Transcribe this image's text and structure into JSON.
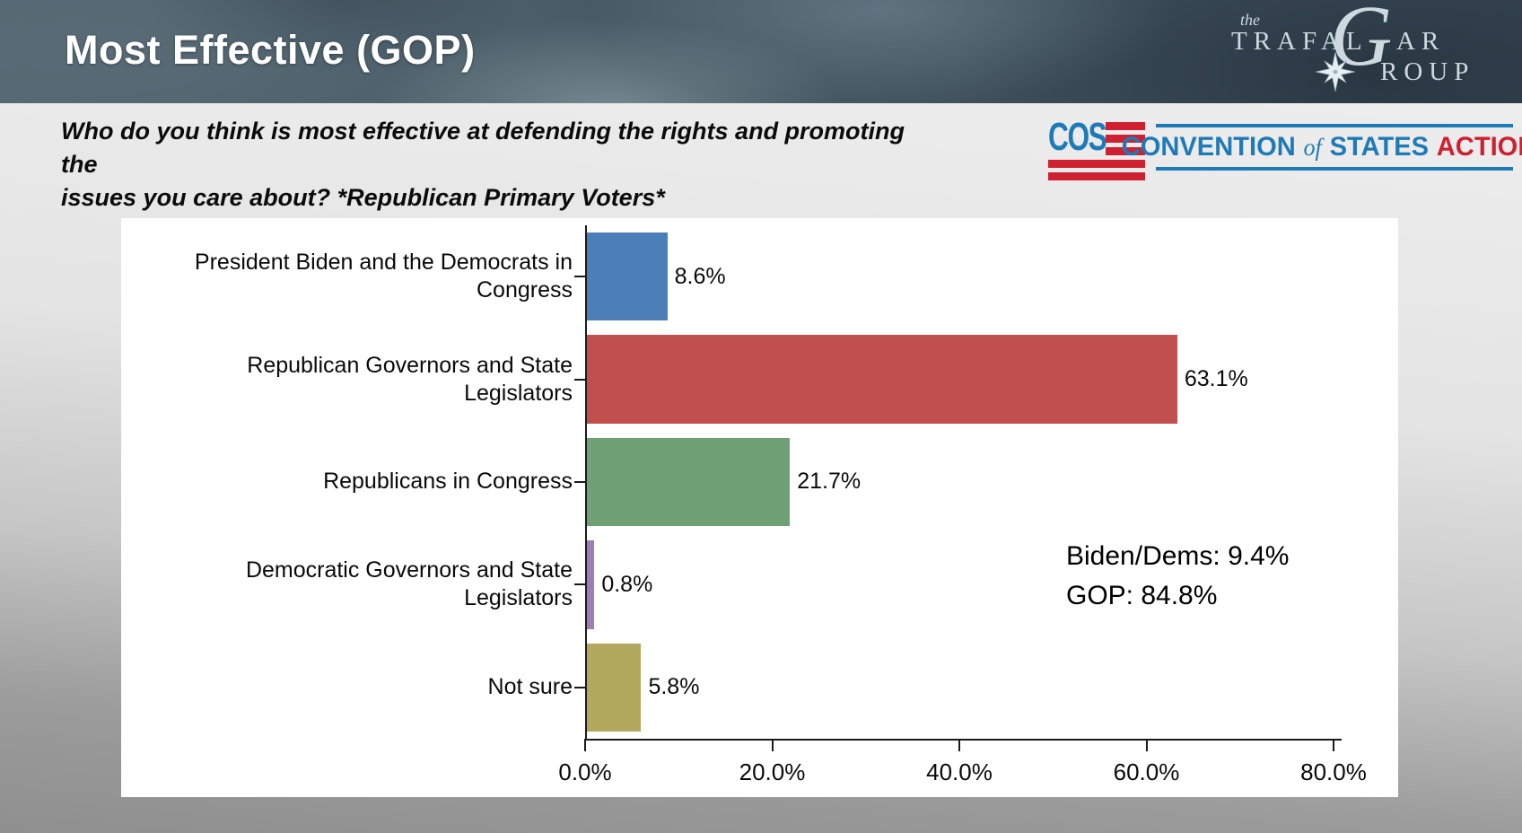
{
  "header": {
    "title": "Most Effective (GOP)",
    "trafalgar_logo": {
      "the": "the",
      "trafal": "TRAFAL",
      "g": "G",
      "ar": "AR",
      "roup": "ROUP",
      "color": "#cdd9de"
    }
  },
  "question": {
    "line1": "Who do you think is most effective at defending the rights and promoting the",
    "line2": "issues you care about? *Republican Primary Voters*"
  },
  "cos_logo": {
    "flag_text": "COS",
    "convention": "CONVENTION",
    "of": "of",
    "states": "STATES",
    "action": "ACTION",
    "blue": "#1f7ab8",
    "red": "#ce2030"
  },
  "chart_data": {
    "type": "bar",
    "orientation": "horizontal",
    "categories": [
      "President Biden and the Democrats in Congress",
      "Republican Governors and State Legislators",
      "Republicans in Congress",
      "Democratic Governors and State Legislators",
      "Not sure"
    ],
    "values": [
      8.6,
      63.1,
      21.7,
      0.8,
      5.8
    ],
    "value_labels": [
      "8.6%",
      "63.1%",
      "21.7%",
      "0.8%",
      "5.8%"
    ],
    "bar_colors": [
      "#4c7fb8",
      "#c14f4d",
      "#70a176",
      "#9c7eb2",
      "#b3a95e"
    ],
    "x_ticks": [
      "0.0%",
      "20.0%",
      "40.0%",
      "60.0%",
      "80.0%"
    ],
    "x_tick_values": [
      0,
      20,
      40,
      60,
      80
    ],
    "xlim": [
      0,
      80
    ],
    "grid": false,
    "legend": "none",
    "annotation": {
      "line1": "Biden/Dems: 9.4%",
      "line2": "GOP: 84.8%"
    }
  }
}
